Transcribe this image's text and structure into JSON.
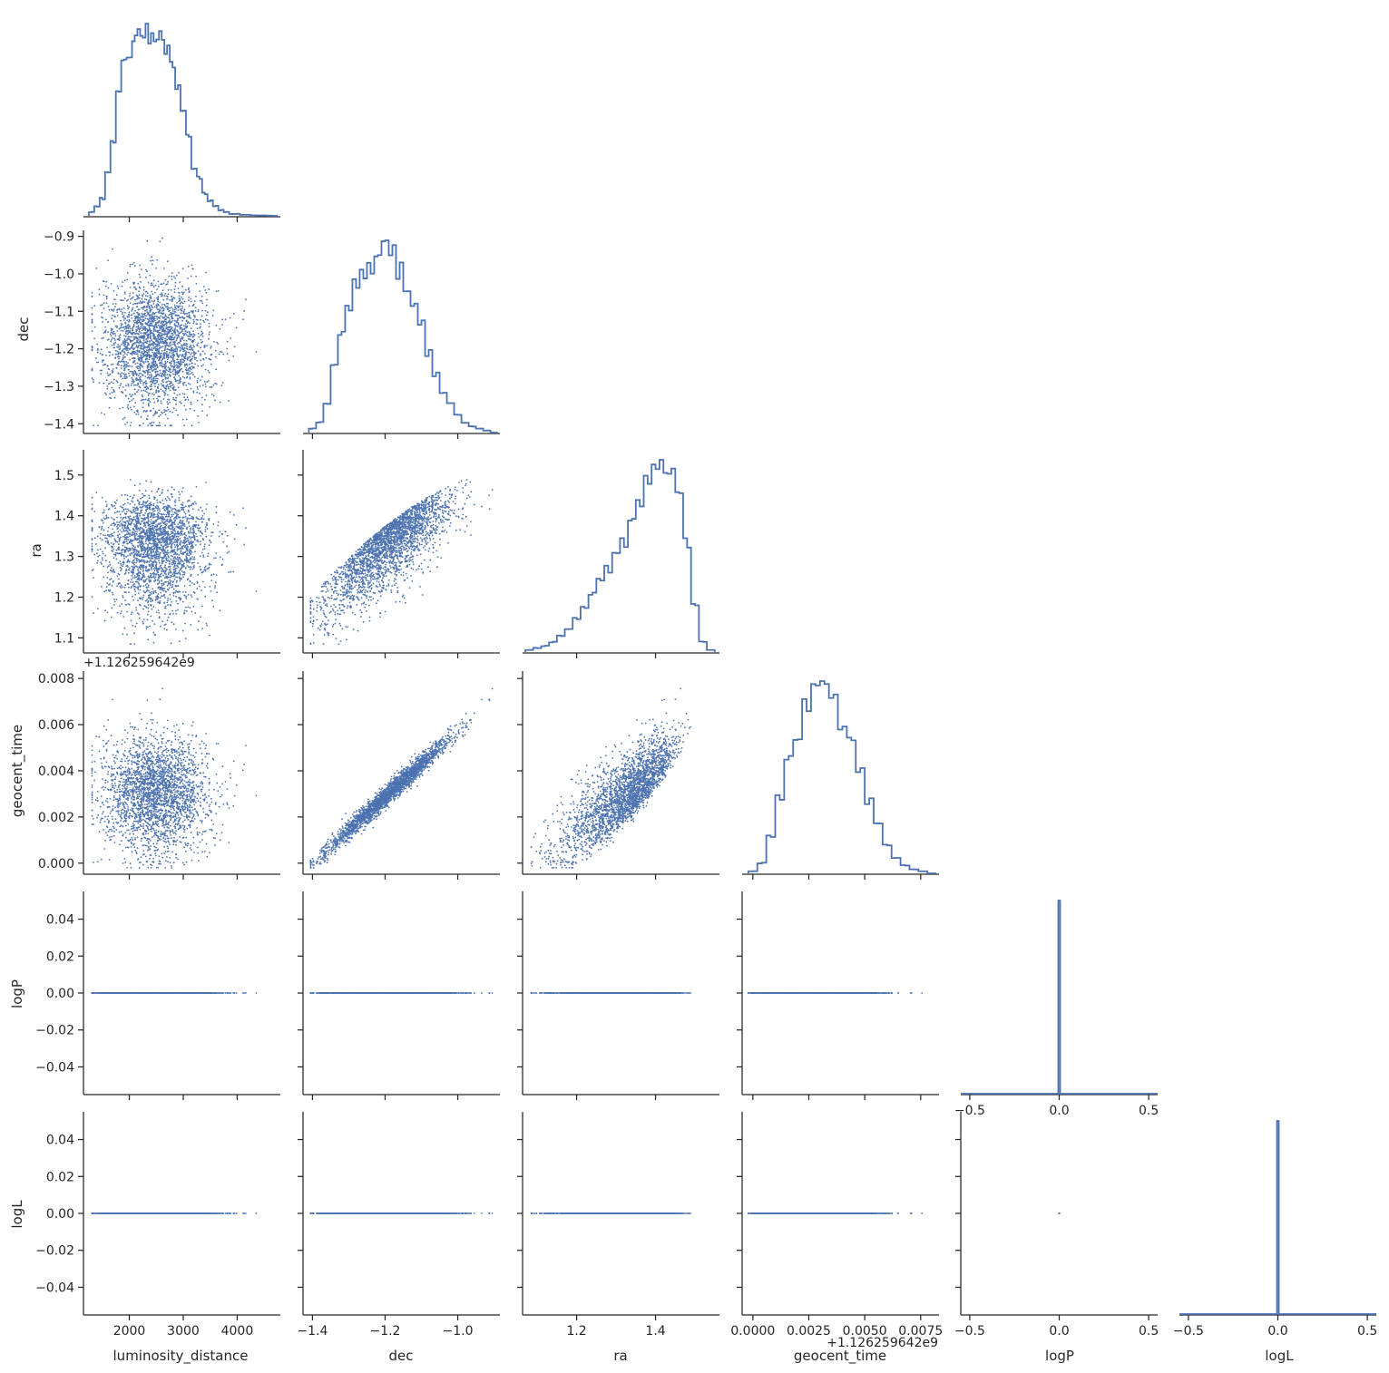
{
  "chart_data": {
    "type": "scatter",
    "layout": "corner-pairplot",
    "variables": [
      "luminosity_distance",
      "dec",
      "ra",
      "geocent_time",
      "logP",
      "logL"
    ],
    "xlabels": [
      "luminosity_distance",
      "dec",
      "ra",
      "geocent_time",
      "logP",
      "logL"
    ],
    "ylabels": [
      "",
      "dec",
      "ra",
      "geocent_time",
      "logP",
      "logL"
    ],
    "color": "#4c72b0",
    "geocent_time_offset_text": "+1.126259642e9",
    "axes": {
      "luminosity_distance": {
        "lim": [
          1150,
          4800
        ],
        "ticks": [
          2000,
          3000,
          4000
        ],
        "ticklabels": [
          "2000",
          "3000",
          "4000"
        ]
      },
      "dec": {
        "lim": [
          -1.426,
          -0.884
        ],
        "ticks": [
          -1.4,
          -1.2,
          -1.0
        ],
        "ticklabels": [
          "−1.4",
          "−1.2",
          "−1.0"
        ],
        "yticks": [
          -1.4,
          -1.3,
          -1.2,
          -1.1,
          -1.0,
          -0.9
        ],
        "yticklabels": [
          "−1.4",
          "−1.3",
          "−1.2",
          "−1.1",
          "−1.0",
          "−0.9"
        ]
      },
      "ra": {
        "lim": [
          1.063,
          1.562
        ],
        "ticks": [
          1.2,
          1.4
        ],
        "ticklabels": [
          "1.2",
          "1.4"
        ],
        "yticks": [
          1.1,
          1.2,
          1.3,
          1.4,
          1.5
        ],
        "yticklabels": [
          "1.1",
          "1.2",
          "1.3",
          "1.4",
          "1.5"
        ]
      },
      "geocent_time": {
        "lim": [
          -0.00048,
          0.00832
        ],
        "ticks": [
          0.0,
          0.0025,
          0.005,
          0.0075
        ],
        "ticklabels": [
          "0.0000",
          "0.0025",
          "0.0050",
          "0.0075"
        ],
        "yticks": [
          0.0,
          0.002,
          0.004,
          0.006,
          0.008
        ],
        "yticklabels": [
          "0.000",
          "0.002",
          "0.004",
          "0.006",
          "0.008"
        ]
      },
      "logP": {
        "lim": [
          -0.55,
          0.55
        ],
        "ticks": [
          -0.5,
          0.0,
          0.5
        ],
        "ticklabels": [
          "−0.5",
          "0.0",
          "0.5"
        ],
        "ylim": [
          -0.055,
          0.055
        ],
        "yticks": [
          -0.04,
          -0.02,
          0.0,
          0.02,
          0.04
        ],
        "yticklabels": [
          "−0.04",
          "−0.02",
          "0.00",
          "0.02",
          "0.04"
        ]
      },
      "logL": {
        "lim": [
          -0.55,
          0.55
        ],
        "ticks": [
          -0.5,
          0.0,
          0.5
        ],
        "ticklabels": [
          "−0.5",
          "0.0",
          "0.5"
        ],
        "ylim": [
          -0.055,
          0.055
        ],
        "yticks": [
          -0.04,
          -0.02,
          0.0,
          0.02,
          0.04
        ],
        "yticklabels": [
          "−0.04",
          "−0.02",
          "0.00",
          "0.02",
          "0.04"
        ]
      }
    },
    "histograms": {
      "luminosity_distance": {
        "x": [
          1300,
          1400,
          1500,
          1600,
          1700,
          1800,
          1900,
          2000,
          2100,
          2200,
          2300,
          2400,
          2500,
          2600,
          2700,
          2800,
          2900,
          3000,
          3100,
          3200,
          3300,
          3400,
          3500,
          3600,
          3700,
          3800,
          3900,
          4000,
          4100,
          4200,
          4300,
          4400,
          4500,
          4600,
          4700
        ],
        "density": [
          0.02,
          0.05,
          0.09,
          0.23,
          0.38,
          0.62,
          0.8,
          0.88,
          0.94,
          0.98,
          0.96,
          0.95,
          0.94,
          0.92,
          0.85,
          0.78,
          0.68,
          0.52,
          0.4,
          0.26,
          0.2,
          0.12,
          0.08,
          0.05,
          0.03,
          0.02,
          0.01,
          0.01,
          0.005,
          0.005,
          0.003,
          0.002,
          0.002,
          0.001,
          0.0
        ]
      },
      "dec": {
        "x": [
          -1.4,
          -1.38,
          -1.36,
          -1.34,
          -1.32,
          -1.3,
          -1.28,
          -1.26,
          -1.24,
          -1.22,
          -1.2,
          -1.18,
          -1.16,
          -1.14,
          -1.12,
          -1.1,
          -1.08,
          -1.06,
          -1.04,
          -1.02,
          -1.0,
          -0.98,
          -0.96,
          -0.94,
          -0.92,
          -0.9
        ],
        "density": [
          0.02,
          0.05,
          0.14,
          0.33,
          0.48,
          0.62,
          0.76,
          0.78,
          0.83,
          0.86,
          0.94,
          0.9,
          0.81,
          0.7,
          0.61,
          0.53,
          0.4,
          0.29,
          0.2,
          0.14,
          0.09,
          0.05,
          0.03,
          0.02,
          0.01,
          0.0
        ]
      },
      "ra": {
        "x": [
          1.08,
          1.1,
          1.12,
          1.14,
          1.16,
          1.18,
          1.2,
          1.22,
          1.24,
          1.26,
          1.28,
          1.3,
          1.32,
          1.34,
          1.36,
          1.38,
          1.4,
          1.42,
          1.44,
          1.46,
          1.48,
          1.5,
          1.52,
          1.54
        ],
        "density": [
          0.01,
          0.02,
          0.03,
          0.05,
          0.08,
          0.12,
          0.17,
          0.23,
          0.28,
          0.35,
          0.41,
          0.49,
          0.55,
          0.66,
          0.74,
          0.83,
          0.96,
          0.92,
          0.88,
          0.78,
          0.55,
          0.23,
          0.05,
          0.01
        ]
      },
      "geocent_time": {
        "x": [
          0.0,
          0.0004,
          0.0008,
          0.0012,
          0.0016,
          0.002,
          0.0024,
          0.0028,
          0.0032,
          0.0036,
          0.004,
          0.0044,
          0.0048,
          0.0052,
          0.0056,
          0.006,
          0.0064,
          0.0068,
          0.0072,
          0.0076,
          0.008
        ],
        "density": [
          0.01,
          0.05,
          0.18,
          0.38,
          0.55,
          0.7,
          0.82,
          0.92,
          0.96,
          0.88,
          0.75,
          0.64,
          0.5,
          0.36,
          0.24,
          0.14,
          0.08,
          0.04,
          0.02,
          0.01,
          0.0
        ]
      },
      "logP": {
        "x": [
          0.0
        ],
        "density": [
          1.0
        ],
        "note_spike": true
      },
      "logL": {
        "x": [
          0.0
        ],
        "density": [
          1.0
        ],
        "note_spike": true
      }
    },
    "relations": {
      "n_points": 5000,
      "dec_geocent_time": "strong positive linear (geocent_time ≈ 0.0143·(dec + 1.4))",
      "dec_ra": "positive, ra saturates near 1.5",
      "ra_geocent_time": "positive",
      "logP_all": 0.0,
      "logL_all": 0.0
    }
  }
}
